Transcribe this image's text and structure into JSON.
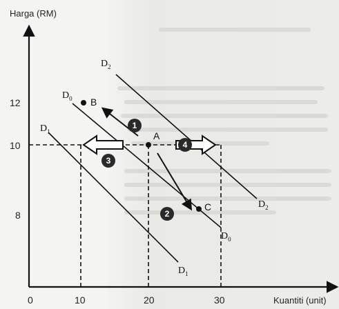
{
  "axes": {
    "y_title": "Harga (RM)",
    "x_title": "Kuantiti (unit)",
    "y_ticks": [
      "12",
      "10",
      "8"
    ],
    "x_ticks": [
      "0",
      "10",
      "20",
      "30"
    ]
  },
  "curves": {
    "d0": {
      "letter": "D",
      "sub": "0"
    },
    "d1": {
      "letter": "D",
      "sub": "1"
    },
    "d2": {
      "letter": "D",
      "sub": "2"
    }
  },
  "points": {
    "a": "A",
    "b": "B",
    "c": "C"
  },
  "badges": {
    "one": "1",
    "two": "2",
    "three": "3",
    "four": "4"
  },
  "colors": {
    "ink": "#111111",
    "badge": "#2a2a2a",
    "background": "#f4f4f2"
  }
}
